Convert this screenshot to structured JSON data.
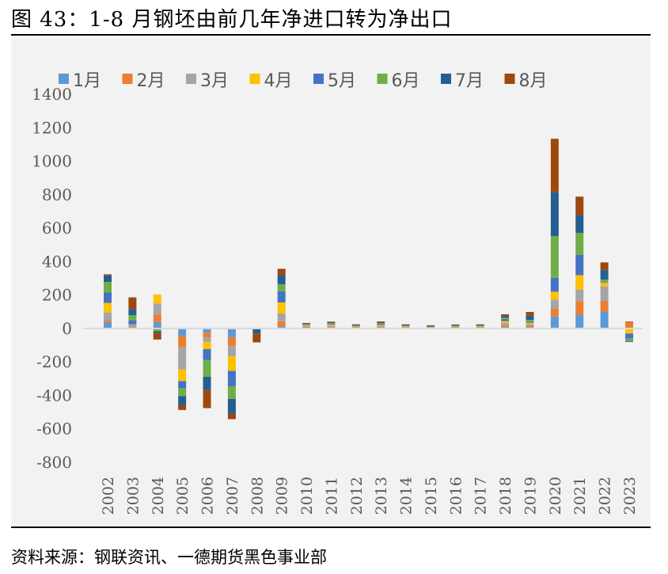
{
  "title": "图 43：1-8 月钢坯由前几年净进口转为净出口",
  "source": "资料来源：钢联资讯、一德期货黑色事业部",
  "chart_data": {
    "type": "bar",
    "stacked": true,
    "title": "",
    "xlabel": "",
    "ylabel": "",
    "ylim": [
      -800,
      1400
    ],
    "yticks": [
      1400,
      1200,
      1000,
      800,
      600,
      400,
      200,
      0,
      -200,
      -400,
      -600,
      -800
    ],
    "grid": false,
    "legend_position": "top",
    "background": "#f2f2f2",
    "categories": [
      "2002",
      "2003",
      "2004",
      "2005",
      "2006",
      "2007",
      "2008",
      "2009",
      "2010",
      "2011",
      "2012",
      "2013",
      "2014",
      "2015",
      "2016",
      "2017",
      "2018",
      "2019",
      "2020",
      "2021",
      "2022",
      "2023"
    ],
    "series": [
      {
        "name": "1月",
        "color": "#5b9bd5",
        "values": [
          39,
          0,
          39,
          -45,
          -25,
          -53,
          0,
          13,
          4,
          5,
          3,
          4,
          3,
          2,
          3,
          3,
          10,
          8,
          72,
          82,
          101,
          0
        ]
      },
      {
        "name": "2月",
        "color": "#ed7d31",
        "values": [
          10,
          9,
          44,
          -68,
          -28,
          -51,
          0,
          31,
          5,
          6,
          4,
          6,
          4,
          3,
          4,
          4,
          12,
          10,
          47,
          82,
          64,
          38
        ]
      },
      {
        "name": "3月",
        "color": "#a5a5a5",
        "values": [
          47,
          16,
          66,
          -132,
          -27,
          -63,
          0,
          46,
          6,
          6,
          4,
          5,
          4,
          3,
          3,
          3,
          12,
          8,
          54,
          69,
          87,
          0
        ]
      },
      {
        "name": "4月",
        "color": "#ffc000",
        "values": [
          57,
          0,
          54,
          -69,
          -43,
          -86,
          0,
          66,
          5,
          5,
          3,
          5,
          3,
          3,
          3,
          4,
          10,
          8,
          47,
          86,
          23,
          -30
        ]
      },
      {
        "name": "5月",
        "color": "#4472c4",
        "values": [
          62,
          24,
          0,
          -44,
          -66,
          -93,
          0,
          67,
          4,
          5,
          3,
          6,
          3,
          2,
          3,
          3,
          10,
          7,
          83,
          121,
          5,
          -31
        ]
      },
      {
        "name": "6月",
        "color": "#70ad47",
        "values": [
          63,
          31,
          -17,
          -46,
          -100,
          -75,
          0,
          41,
          4,
          5,
          3,
          6,
          3,
          2,
          3,
          3,
          10,
          10,
          249,
          132,
          12,
          -14
        ]
      },
      {
        "name": "7月",
        "color": "#255e91",
        "values": [
          40,
          36,
          -9,
          -53,
          -79,
          -88,
          -30,
          55,
          3,
          5,
          3,
          5,
          3,
          2,
          3,
          3,
          11,
          26,
          262,
          104,
          57,
          -5
        ]
      },
      {
        "name": "8月",
        "color": "#9e480e",
        "values": [
          6,
          70,
          -40,
          -30,
          -108,
          -33,
          -53,
          38,
          2,
          4,
          2,
          5,
          2,
          2,
          2,
          2,
          10,
          22,
          320,
          112,
          46,
          3
        ]
      }
    ]
  }
}
